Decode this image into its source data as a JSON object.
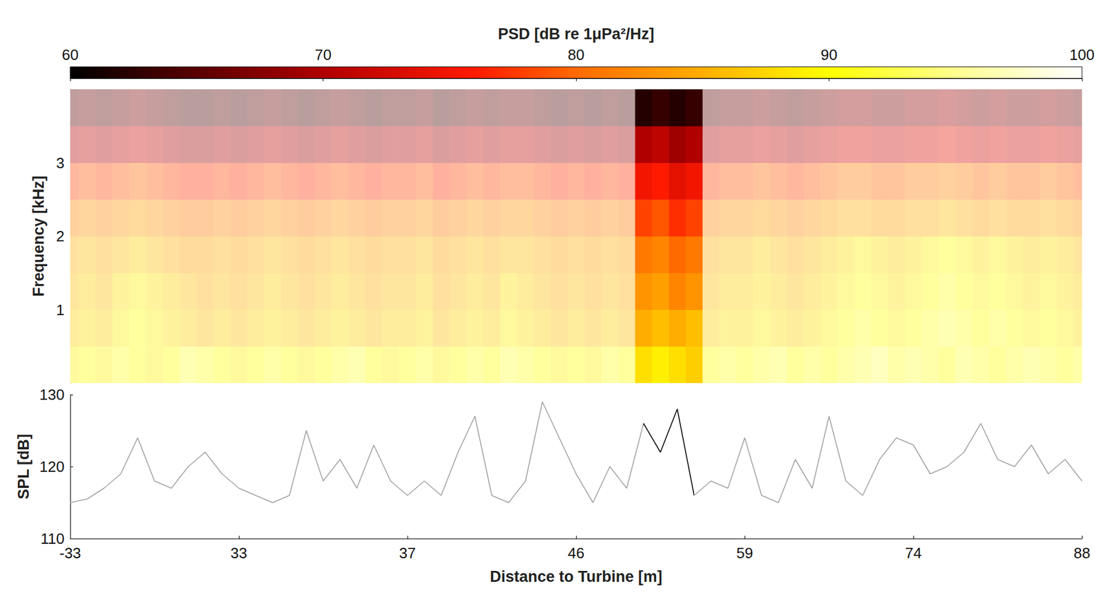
{
  "chart_data": [
    {
      "type": "heatmap",
      "ylabel": "Frequency [kHz]",
      "categories": [
        "-33",
        null,
        null,
        null,
        null,
        null,
        null,
        null,
        null,
        null,
        "33",
        null,
        null,
        null,
        null,
        null,
        null,
        null,
        null,
        null,
        "37",
        null,
        null,
        null,
        null,
        null,
        null,
        null,
        null,
        null,
        "46",
        null,
        null,
        null,
        null,
        null,
        null,
        null,
        null,
        null,
        "59",
        null,
        null,
        null,
        null,
        null,
        null,
        null,
        null,
        null,
        "74",
        null,
        null,
        null,
        null,
        null,
        null,
        null,
        null,
        null,
        "88"
      ],
      "frequency_bins": [
        0,
        0.5,
        1,
        1.5,
        2,
        2.5,
        3,
        3.5,
        4
      ],
      "psd": [
        [
          89,
          90,
          89,
          91,
          90,
          89,
          90,
          92,
          91,
          90,
          89,
          90,
          91,
          90,
          89,
          90,
          91,
          92,
          90,
          89,
          90,
          91,
          89,
          90,
          91,
          90,
          92,
          91,
          90,
          89,
          90,
          89,
          91,
          90,
          88,
          89,
          88,
          87,
          90,
          91,
          90,
          91,
          92,
          90,
          91,
          90,
          91,
          92,
          93,
          91,
          92,
          91,
          90,
          92,
          91,
          90,
          91,
          92,
          91,
          90,
          91
        ],
        [
          87,
          88,
          87,
          89,
          90,
          89,
          88,
          87,
          86,
          87,
          86,
          87,
          88,
          87,
          86,
          87,
          88,
          87,
          86,
          87,
          87,
          88,
          86,
          87,
          88,
          87,
          89,
          88,
          87,
          86,
          87,
          86,
          87,
          86,
          85,
          86,
          85,
          86,
          87,
          88,
          88,
          89,
          88,
          87,
          88,
          89,
          90,
          91,
          90,
          89,
          90,
          91,
          92,
          91,
          90,
          91,
          90,
          89,
          90,
          89,
          88
        ],
        [
          86,
          87,
          86,
          88,
          89,
          88,
          87,
          86,
          85,
          86,
          85,
          86,
          87,
          86,
          85,
          86,
          87,
          86,
          85,
          86,
          86,
          87,
          85,
          86,
          87,
          86,
          88,
          87,
          86,
          85,
          86,
          85,
          86,
          85,
          83,
          84,
          82,
          83,
          86,
          87,
          87,
          88,
          87,
          86,
          87,
          88,
          89,
          90,
          89,
          88,
          89,
          90,
          91,
          90,
          89,
          90,
          89,
          88,
          89,
          88,
          87
        ],
        [
          85,
          86,
          85,
          86,
          87,
          86,
          85,
          84,
          84,
          85,
          84,
          85,
          86,
          85,
          84,
          85,
          86,
          85,
          84,
          85,
          85,
          86,
          84,
          85,
          86,
          85,
          86,
          86,
          85,
          84,
          85,
          84,
          85,
          84,
          81,
          82,
          80,
          81,
          85,
          86,
          86,
          87,
          86,
          85,
          86,
          87,
          88,
          89,
          88,
          87,
          88,
          89,
          90,
          89,
          88,
          89,
          88,
          87,
          88,
          87,
          86
        ],
        [
          82,
          83,
          82,
          83,
          84,
          83,
          82,
          81,
          81,
          82,
          81,
          82,
          83,
          82,
          81,
          82,
          83,
          82,
          81,
          82,
          82,
          83,
          81,
          82,
          83,
          82,
          83,
          83,
          82,
          81,
          82,
          81,
          82,
          81,
          78,
          79,
          77,
          78,
          82,
          83,
          83,
          84,
          83,
          82,
          83,
          84,
          85,
          85,
          84,
          84,
          85,
          85,
          86,
          85,
          84,
          85,
          84,
          84,
          85,
          84,
          83
        ],
        [
          78,
          79,
          78,
          79,
          80,
          79,
          78,
          77,
          77,
          78,
          77,
          78,
          79,
          78,
          77,
          78,
          79,
          78,
          77,
          78,
          78,
          79,
          77,
          78,
          79,
          78,
          79,
          79,
          78,
          77,
          78,
          77,
          78,
          77,
          75,
          76,
          74,
          75,
          78,
          79,
          79,
          80,
          79,
          78,
          79,
          80,
          81,
          81,
          80,
          80,
          81,
          81,
          82,
          81,
          80,
          81,
          80,
          80,
          81,
          80,
          79
        ],
        [
          70,
          71,
          70,
          71,
          72,
          71,
          70,
          69,
          69,
          70,
          69,
          70,
          71,
          70,
          69,
          70,
          71,
          70,
          69,
          70,
          70,
          71,
          69,
          70,
          71,
          70,
          71,
          71,
          70,
          69,
          70,
          69,
          70,
          69,
          70,
          71,
          69,
          70,
          70,
          71,
          71,
          72,
          71,
          70,
          71,
          72,
          73,
          73,
          72,
          72,
          73,
          73,
          74,
          73,
          72,
          73,
          72,
          72,
          73,
          72,
          71
        ],
        [
          65,
          66,
          65,
          66,
          67,
          66,
          65,
          64,
          64,
          65,
          64,
          65,
          66,
          65,
          64,
          65,
          66,
          65,
          64,
          65,
          65,
          66,
          64,
          65,
          66,
          65,
          66,
          66,
          65,
          64,
          65,
          64,
          65,
          64,
          62,
          63,
          62,
          63,
          65,
          66,
          66,
          67,
          66,
          65,
          66,
          67,
          68,
          68,
          67,
          67,
          68,
          68,
          69,
          68,
          67,
          68,
          67,
          67,
          68,
          67,
          66
        ]
      ],
      "ylim": [
        0,
        4
      ],
      "yticks": [
        1,
        2,
        3
      ],
      "colorbar": {
        "label": "PSD [dB re 1μPa²/Hz]",
        "range": [
          60,
          100
        ],
        "ticks": [
          60,
          70,
          80,
          90,
          100
        ]
      },
      "highlight": [
        34,
        37
      ],
      "tick_labels": "y"
    },
    {
      "type": "line",
      "xlabel": "Distance to Turbine [m]",
      "ylabel": "SPL [dB]",
      "categories": [
        "-33",
        null,
        null,
        null,
        null,
        null,
        null,
        null,
        null,
        null,
        "33",
        null,
        null,
        null,
        null,
        null,
        null,
        null,
        null,
        null,
        "37",
        null,
        null,
        null,
        null,
        null,
        null,
        null,
        null,
        null,
        "46",
        null,
        null,
        null,
        null,
        null,
        null,
        null,
        null,
        null,
        "59",
        null,
        null,
        null,
        null,
        null,
        null,
        null,
        null,
        null,
        "74",
        null,
        null,
        null,
        null,
        null,
        null,
        null,
        null,
        null,
        "88"
      ],
      "values": [
        115,
        115.5,
        117,
        119,
        124,
        118,
        117,
        120,
        122,
        119,
        117,
        116,
        115,
        116,
        125,
        118,
        121,
        117,
        123,
        118,
        116,
        118,
        116,
        122,
        127,
        116,
        115,
        118,
        129,
        124,
        119,
        115,
        120,
        117,
        126,
        122,
        128,
        116,
        118,
        117,
        124,
        116,
        115,
        121,
        117,
        127,
        118,
        116,
        121,
        124,
        123,
        119,
        120,
        122,
        126,
        121,
        120,
        123,
        119,
        121,
        118
      ],
      "color": "#a0a0a0",
      "ylim": [
        110,
        130
      ],
      "yticks": [
        110,
        120,
        130
      ],
      "highlight": [
        34,
        37
      ]
    }
  ]
}
